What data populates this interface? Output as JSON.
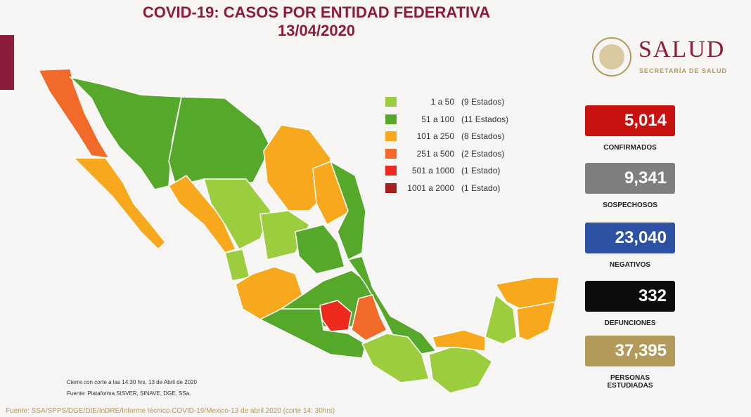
{
  "header": {
    "title": "COVID-19: CASOS POR ENTIDAD FEDERATIVA",
    "date": "13/04/2020"
  },
  "logo": {
    "name": "SALUD",
    "subtitle": "SECRETARÍA DE SALUD"
  },
  "legend": [
    {
      "range": "1 a 50",
      "count": "(9 Estados)",
      "color": "#9ccd3f"
    },
    {
      "range": "51 a 100",
      "count": "(11 Estados)",
      "color": "#55a82a"
    },
    {
      "range": "101 a 250",
      "count": "(8 Estados)",
      "color": "#f7a81d"
    },
    {
      "range": "251 a 500",
      "count": "(2 Estados)",
      "color": "#f26a2a"
    },
    {
      "range": "501 a 1000",
      "count": "(1 Estado)",
      "color": "#ee2a1d"
    },
    {
      "range": "1001 a 2000",
      "count": "(1 Estado)",
      "color": "#a6201f"
    }
  ],
  "stats": [
    {
      "value": "5,014",
      "label": "CONFIRMADOS",
      "color": "#c7120f"
    },
    {
      "value": "9,341",
      "label": "SOSPECHOSOS",
      "color": "#7f7f7f"
    },
    {
      "value": "23,040",
      "label": "NEGATIVOS",
      "color": "#2d51a3"
    },
    {
      "value": "332",
      "label": "DEFUNCIONES",
      "color": "#0c0c0c"
    },
    {
      "value": "37,395",
      "label": "PERSONAS ESTUDIADAS",
      "color": "#b39a5a"
    }
  ],
  "notes": [
    "Cierre con corte a las 14:30 hrs, 13 de Abril de 2020",
    "Fuente: Plataforma SISVER, SINAVE, DGE, SSa."
  ],
  "source": "Fuente: SSA/SPPS/DGE/DIE/InDRE/Informe técnico.COVID-19/Mexico-13 de abril 2020 (corte 14: 30hrs)"
}
